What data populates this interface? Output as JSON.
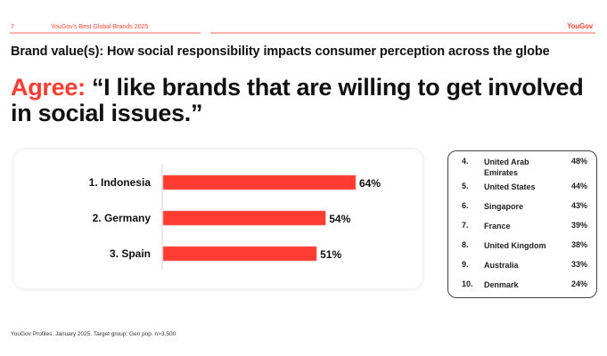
{
  "header": {
    "page_number": "7",
    "report_title": "YouGov's Best Global Brands 2025",
    "brand": "YouGov"
  },
  "subtitle": "Brand value(s): How social responsibility impacts consumer perception across the globe",
  "headline": {
    "prefix": "Agree:",
    "quote": "“I like brands that are willing to get involved in social issues.”"
  },
  "colors": {
    "accent": "#ff3c32",
    "header_line": "#ffb3ad",
    "bar": "#ff3c32"
  },
  "chart_data": {
    "type": "bar",
    "orientation": "horizontal",
    "title": "Agree: “I like brands that are willing to get involved in social issues.”",
    "categories": [
      "1. Indonesia",
      "2. Germany",
      "3. Spain"
    ],
    "values": [
      64,
      54,
      51
    ],
    "value_labels": [
      "64%",
      "54%",
      "51%"
    ],
    "unit": "%",
    "xlabel": "",
    "ylabel": "",
    "xlim": [
      0,
      64
    ],
    "grid": false,
    "legend": "none"
  },
  "ranking_table": {
    "rows": [
      {
        "rank": "4.",
        "country": "United Arab Emirates",
        "value": "48%"
      },
      {
        "rank": "5.",
        "country": "United States",
        "value": "44%"
      },
      {
        "rank": "6.",
        "country": "Singapore",
        "value": "43%"
      },
      {
        "rank": "7.",
        "country": "France",
        "value": "39%"
      },
      {
        "rank": "8.",
        "country": "United Kingdom",
        "value": "38%"
      },
      {
        "rank": "9.",
        "country": "Australia",
        "value": "33%"
      },
      {
        "rank": "10.",
        "country": "Denmark",
        "value": "24%"
      }
    ]
  },
  "footer": "YouGov Profiles. January 2025. Target group: Gen pop. n>3,500"
}
